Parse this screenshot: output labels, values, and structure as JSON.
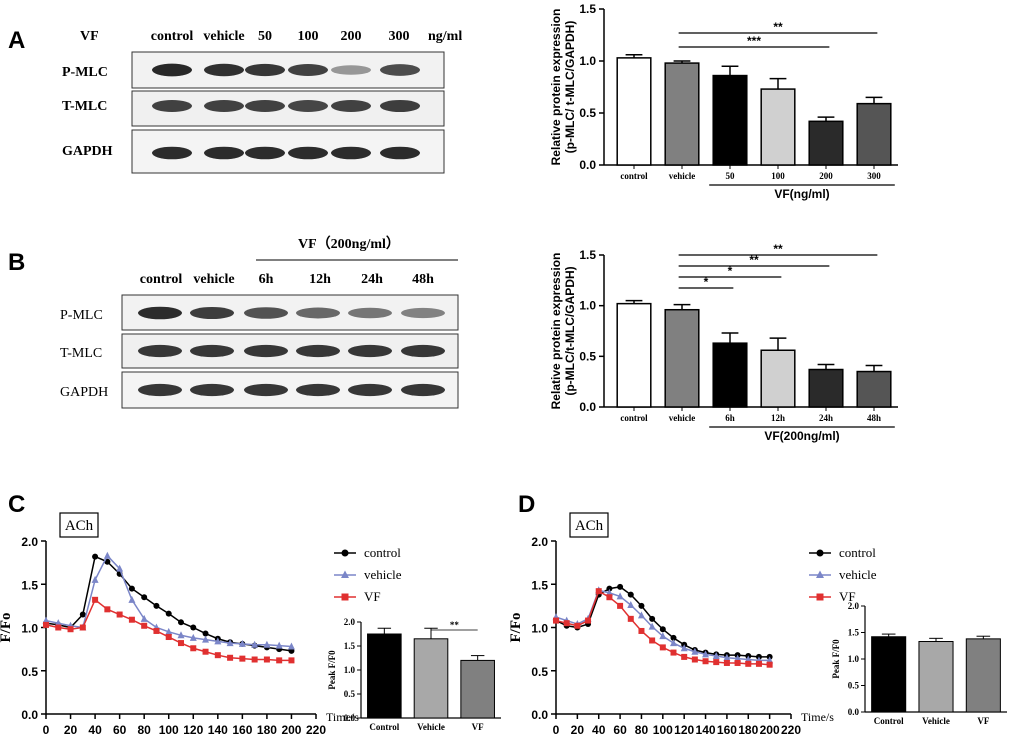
{
  "panel_labels": {
    "a": "A",
    "b": "B",
    "c": "C",
    "d": "D"
  },
  "blot_a": {
    "header_label": "VF",
    "lanes": [
      "control",
      "vehicle",
      "50",
      "100",
      "200",
      "300"
    ],
    "unit": "ng/ml",
    "rows": [
      "P-MLC",
      "T-MLC",
      "GAPDH"
    ],
    "band_intensity": {
      "P-MLC": [
        0.92,
        0.88,
        0.85,
        0.8,
        0.4,
        0.75
      ],
      "T-MLC": [
        0.8,
        0.8,
        0.8,
        0.78,
        0.8,
        0.82
      ],
      "GAPDH": [
        0.9,
        0.9,
        0.9,
        0.9,
        0.9,
        0.9
      ]
    }
  },
  "blot_b": {
    "header_label": "VF（200ng/ml）",
    "lanes": [
      "control",
      "vehicle",
      "6h",
      "12h",
      "24h",
      "48h"
    ],
    "rows": [
      "P-MLC",
      "T-MLC",
      "GAPDH"
    ],
    "band_intensity": {
      "P-MLC": [
        0.9,
        0.82,
        0.72,
        0.62,
        0.55,
        0.5
      ],
      "T-MLC": [
        0.85,
        0.85,
        0.85,
        0.85,
        0.85,
        0.85
      ],
      "GAPDH": [
        0.85,
        0.85,
        0.85,
        0.85,
        0.85,
        0.85
      ]
    }
  },
  "chart_data": [
    {
      "id": "A-bar",
      "type": "bar",
      "ylabel": "Relative protein expression (p-MLC/ t-MLC/GAPDH)",
      "ylabel_lines": [
        "Relative protein expression",
        "(p-MLC/ t-MLC/GAPDH)"
      ],
      "categories": [
        "control",
        "vehicle",
        "50",
        "100",
        "200",
        "300"
      ],
      "values": [
        1.03,
        0.98,
        0.86,
        0.73,
        0.42,
        0.59
      ],
      "errors": [
        0.03,
        0.02,
        0.09,
        0.1,
        0.04,
        0.06
      ],
      "colors": [
        "#ffffff",
        "#808080",
        "#000000",
        "#d0d0d0",
        "#2a2a2a",
        "#555555"
      ],
      "yticks": [
        "0.0",
        "0.5",
        "1.0",
        "1.5"
      ],
      "ylim": [
        0,
        1.5
      ],
      "group_label": "VF(ng/ml)",
      "group_start": 2,
      "significance": [
        {
          "from": 1,
          "to": 4,
          "label": "***"
        },
        {
          "from": 1,
          "to": 5,
          "label": "**"
        }
      ]
    },
    {
      "id": "B-bar",
      "type": "bar",
      "ylabel": "Relative protein expression (p-MLC/t-MLC/GAPDH)",
      "ylabel_lines": [
        "Relative protein expression",
        "(p-MLC/t-MLC/GAPDH)"
      ],
      "categories": [
        "control",
        "vehicle",
        "6h",
        "12h",
        "24h",
        "48h"
      ],
      "values": [
        1.02,
        0.96,
        0.63,
        0.56,
        0.37,
        0.35
      ],
      "errors": [
        0.03,
        0.05,
        0.1,
        0.12,
        0.05,
        0.06
      ],
      "colors": [
        "#ffffff",
        "#808080",
        "#000000",
        "#d0d0d0",
        "#2a2a2a",
        "#555555"
      ],
      "yticks": [
        "0.0",
        "0.5",
        "1.0",
        "1.5"
      ],
      "ylim": [
        0,
        1.5
      ],
      "group_label": "VF(200ng/ml)",
      "group_start": 2,
      "significance": [
        {
          "from": 1,
          "to": 2,
          "label": "*"
        },
        {
          "from": 1,
          "to": 3,
          "label": "*"
        },
        {
          "from": 1,
          "to": 4,
          "label": "**"
        },
        {
          "from": 1,
          "to": 5,
          "label": "**"
        }
      ]
    },
    {
      "id": "C-line",
      "type": "line",
      "box_label": "ACh",
      "ylabel": "F/Fo",
      "xlabel": "Time/s",
      "xticks": [
        "0",
        "20",
        "40",
        "60",
        "80",
        "100",
        "120",
        "140",
        "160",
        "180",
        "200",
        "220"
      ],
      "yticks": [
        "0.0",
        "0.5",
        "1.0",
        "1.5",
        "2.0"
      ],
      "xlim": [
        0,
        220
      ],
      "ylim": [
        0,
        2.0
      ],
      "x": [
        0,
        10,
        20,
        30,
        40,
        50,
        60,
        70,
        80,
        90,
        100,
        110,
        120,
        130,
        140,
        150,
        160,
        170,
        180,
        190,
        200
      ],
      "series": [
        {
          "name": "control",
          "color": "#000000",
          "marker": "circle",
          "values": [
            1.05,
            1.03,
            1.0,
            1.15,
            1.82,
            1.76,
            1.62,
            1.45,
            1.35,
            1.25,
            1.16,
            1.06,
            1.0,
            0.93,
            0.87,
            0.83,
            0.81,
            0.79,
            0.77,
            0.75,
            0.73
          ]
        },
        {
          "name": "vehicle",
          "color": "#7b86c8",
          "marker": "triangle",
          "values": [
            1.08,
            1.05,
            1.02,
            1.0,
            1.55,
            1.83,
            1.68,
            1.32,
            1.1,
            1.0,
            0.95,
            0.91,
            0.88,
            0.86,
            0.84,
            0.82,
            0.81,
            0.8,
            0.8,
            0.79,
            0.78
          ]
        },
        {
          "name": "VF",
          "color": "#e03030",
          "marker": "square",
          "values": [
            1.03,
            1.0,
            0.98,
            1.0,
            1.32,
            1.21,
            1.15,
            1.09,
            1.02,
            0.96,
            0.89,
            0.82,
            0.76,
            0.72,
            0.68,
            0.65,
            0.64,
            0.63,
            0.63,
            0.62,
            0.62
          ]
        }
      ],
      "inset": {
        "type": "bar",
        "ylabel": "Peak F/F0",
        "categories": [
          "Control",
          "Vehicle",
          "VF"
        ],
        "values": [
          1.75,
          1.65,
          1.2
        ],
        "errors": [
          0.12,
          0.22,
          0.1
        ],
        "colors": [
          "#000000",
          "#a8a8a8",
          "#808080"
        ],
        "yticks": [
          "0.0",
          "0.5",
          "1.0",
          "1.5",
          "2.0"
        ],
        "ylim": [
          0,
          2.0
        ],
        "significance": [
          {
            "from": 1,
            "to": 2,
            "label": "**"
          }
        ]
      }
    },
    {
      "id": "D-line",
      "type": "line",
      "box_label": "ACh",
      "ylabel": "F/Fo",
      "xlabel": "Time/s",
      "xticks": [
        "0",
        "20",
        "40",
        "60",
        "80",
        "100",
        "120",
        "140",
        "160",
        "180",
        "200",
        "220"
      ],
      "yticks": [
        "0.0",
        "0.5",
        "1.0",
        "1.5",
        "2.0"
      ],
      "xlim": [
        0,
        220
      ],
      "ylim": [
        0,
        2.0
      ],
      "x": [
        0,
        10,
        20,
        30,
        40,
        50,
        60,
        70,
        80,
        90,
        100,
        110,
        120,
        130,
        140,
        150,
        160,
        170,
        180,
        190,
        200
      ],
      "series": [
        {
          "name": "control",
          "color": "#000000",
          "marker": "circle",
          "values": [
            1.08,
            1.02,
            1.0,
            1.04,
            1.38,
            1.45,
            1.47,
            1.38,
            1.25,
            1.1,
            0.98,
            0.88,
            0.8,
            0.74,
            0.71,
            0.69,
            0.68,
            0.68,
            0.67,
            0.66,
            0.66
          ]
        },
        {
          "name": "vehicle",
          "color": "#7b86c8",
          "marker": "triangle",
          "values": [
            1.12,
            1.08,
            1.04,
            1.1,
            1.43,
            1.4,
            1.36,
            1.26,
            1.14,
            1.01,
            0.9,
            0.82,
            0.76,
            0.72,
            0.69,
            0.67,
            0.65,
            0.64,
            0.63,
            0.62,
            0.62
          ]
        },
        {
          "name": "VF",
          "color": "#e03030",
          "marker": "square",
          "values": [
            1.08,
            1.05,
            1.02,
            1.08,
            1.42,
            1.35,
            1.25,
            1.1,
            0.96,
            0.85,
            0.77,
            0.71,
            0.66,
            0.63,
            0.61,
            0.6,
            0.59,
            0.59,
            0.58,
            0.58,
            0.57
          ]
        }
      ],
      "inset": {
        "type": "bar",
        "ylabel": "Peak F/F0",
        "categories": [
          "Control",
          "Vehicle",
          "VF"
        ],
        "values": [
          1.42,
          1.33,
          1.38
        ],
        "errors": [
          0.05,
          0.06,
          0.05
        ],
        "colors": [
          "#000000",
          "#a8a8a8",
          "#808080"
        ],
        "yticks": [
          "0.0",
          "0.5",
          "1.0",
          "1.5",
          "2.0"
        ],
        "ylim": [
          0,
          2.0
        ],
        "significance": []
      }
    }
  ]
}
